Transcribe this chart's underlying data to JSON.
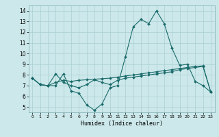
{
  "title": "",
  "xlabel": "Humidex (Indice chaleur)",
  "ylabel": "",
  "bg_color": "#cce8ea",
  "grid_color": "#aacfd2",
  "line_color": "#1a6b6b",
  "xlim": [
    -0.5,
    23.5
  ],
  "ylim": [
    4.5,
    14.5
  ],
  "yticks": [
    5,
    6,
    7,
    8,
    9,
    10,
    11,
    12,
    13,
    14
  ],
  "xticks": [
    0,
    1,
    2,
    3,
    4,
    5,
    6,
    7,
    8,
    9,
    10,
    11,
    12,
    13,
    14,
    15,
    16,
    17,
    18,
    19,
    20,
    21,
    22,
    23
  ],
  "line1_x": [
    0,
    1,
    2,
    3,
    4,
    5,
    6,
    7,
    8,
    9,
    10,
    11,
    12,
    13,
    14,
    15,
    16,
    17,
    18,
    19,
    20,
    21,
    22,
    23
  ],
  "line1_y": [
    7.7,
    7.1,
    7.0,
    7.0,
    8.1,
    6.5,
    6.3,
    5.2,
    4.7,
    5.3,
    6.8,
    7.0,
    9.7,
    12.5,
    13.2,
    12.8,
    14.0,
    12.8,
    10.5,
    8.9,
    9.0,
    7.4,
    7.0,
    6.4
  ],
  "line2_x": [
    0,
    1,
    2,
    3,
    4,
    5,
    6,
    7,
    8,
    9,
    10,
    11,
    12,
    13,
    14,
    15,
    16,
    17,
    18,
    19,
    20,
    21,
    22,
    23
  ],
  "line2_y": [
    7.7,
    7.1,
    7.0,
    7.3,
    7.5,
    7.4,
    7.5,
    7.55,
    7.6,
    7.65,
    7.7,
    7.8,
    7.9,
    8.0,
    8.1,
    8.2,
    8.3,
    8.4,
    8.5,
    8.6,
    8.7,
    8.8,
    8.85,
    6.4
  ],
  "line3_x": [
    0,
    1,
    2,
    3,
    4,
    5,
    6,
    7,
    8,
    9,
    10,
    11,
    12,
    13,
    14,
    15,
    16,
    17,
    18,
    19,
    20,
    21,
    22,
    23
  ],
  "line3_y": [
    7.7,
    7.1,
    7.0,
    8.1,
    7.3,
    7.0,
    6.8,
    7.1,
    7.55,
    7.3,
    7.1,
    7.5,
    7.7,
    7.8,
    7.9,
    8.0,
    8.1,
    8.2,
    8.3,
    8.5,
    8.6,
    8.7,
    8.8,
    6.4
  ]
}
